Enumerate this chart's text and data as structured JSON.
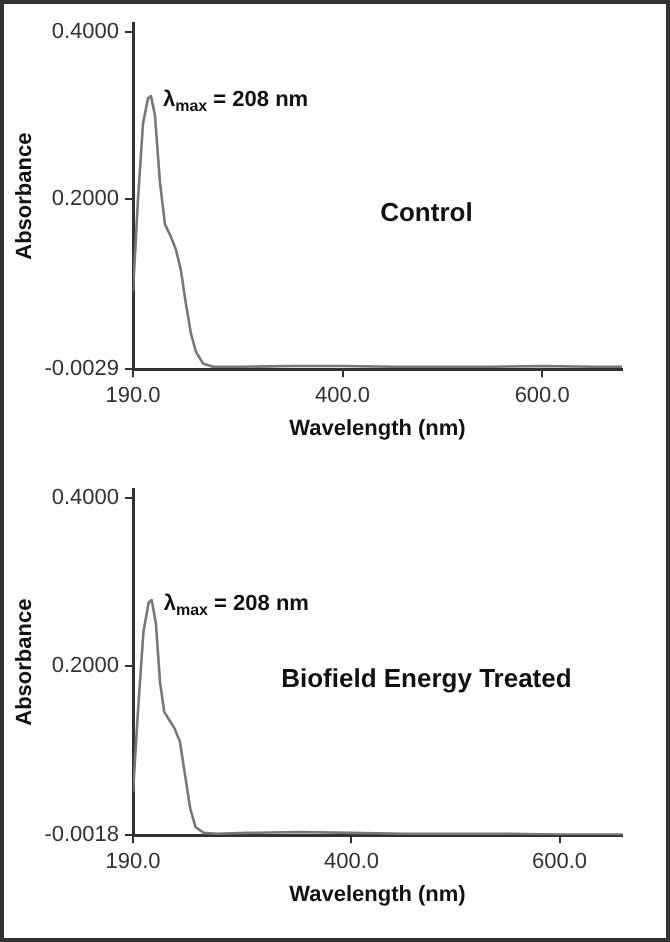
{
  "chart_data": [
    {
      "type": "line",
      "xlabel": "Wavelength (nm)",
      "ylabel": "Absorbance",
      "annotations": [
        {
          "text": "λ$_{max}$ = 208 nm",
          "x": 208,
          "y": 0.323
        },
        "Control"
      ],
      "xlim": [
        190,
        680
      ],
      "xticks": [
        {
          "value": 190,
          "label": "190.0"
        },
        {
          "value": 400,
          "label": "400.0"
        },
        {
          "value": 600,
          "label": "600.0"
        }
      ],
      "ylim": [
        -0.0029,
        0.41
      ],
      "yticks": [
        {
          "value": -0.0029,
          "label": "-0.0029"
        },
        {
          "value": 0.2,
          "label": "0.2000"
        },
        {
          "value": 0.4,
          "label": "0.4000"
        }
      ],
      "grid": false,
      "legend": false,
      "marker": "none",
      "line_style": "solid",
      "series": [
        {
          "color": "#777777",
          "x": [
            190,
            195,
            200,
            205,
            208,
            212,
            217,
            222,
            228,
            233,
            238,
            243,
            248,
            253,
            260,
            270,
            300,
            350,
            400,
            450,
            500,
            550,
            600,
            650,
            680
          ],
          "values": [
            0.09,
            0.2,
            0.29,
            0.32,
            0.323,
            0.3,
            0.22,
            0.17,
            0.155,
            0.14,
            0.115,
            0.075,
            0.04,
            0.018,
            0.004,
            0,
            0,
            0.001,
            0.001,
            0,
            0,
            0,
            0.001,
            0,
            0
          ]
        }
      ]
    },
    {
      "type": "line",
      "xlabel": "Wavelength (nm)",
      "ylabel": "Absorbance",
      "annotations": [
        {
          "text": "λ$_{max}$ = 208 nm",
          "x": 208,
          "y": 0.278
        },
        "Biofield Energy Treated"
      ],
      "xlim": [
        190,
        660
      ],
      "xticks": [
        {
          "value": 190,
          "label": "190.0"
        },
        {
          "value": 400,
          "label": "400.0"
        },
        {
          "value": 600,
          "label": "600.0"
        }
      ],
      "ylim": [
        -0.0018,
        0.41
      ],
      "yticks": [
        {
          "value": -0.0018,
          "label": "-0.0018"
        },
        {
          "value": 0.2,
          "label": "0.2000"
        },
        {
          "value": 0.4,
          "label": "0.4000"
        }
      ],
      "grid": false,
      "legend": false,
      "marker": "none",
      "line_style": "solid",
      "series": [
        {
          "color": "#777777",
          "x": [
            190,
            195,
            200,
            205,
            208,
            212,
            216,
            220,
            225,
            230,
            235,
            240,
            245,
            250,
            258,
            270,
            300,
            350,
            400,
            450,
            500,
            550,
            600,
            660
          ],
          "values": [
            0.05,
            0.15,
            0.24,
            0.275,
            0.278,
            0.25,
            0.18,
            0.145,
            0.135,
            0.125,
            0.11,
            0.07,
            0.03,
            0.008,
            0.001,
            0,
            0.001,
            0.002,
            0.001,
            0,
            0,
            0,
            -0.001,
            -0.001
          ]
        }
      ]
    }
  ]
}
